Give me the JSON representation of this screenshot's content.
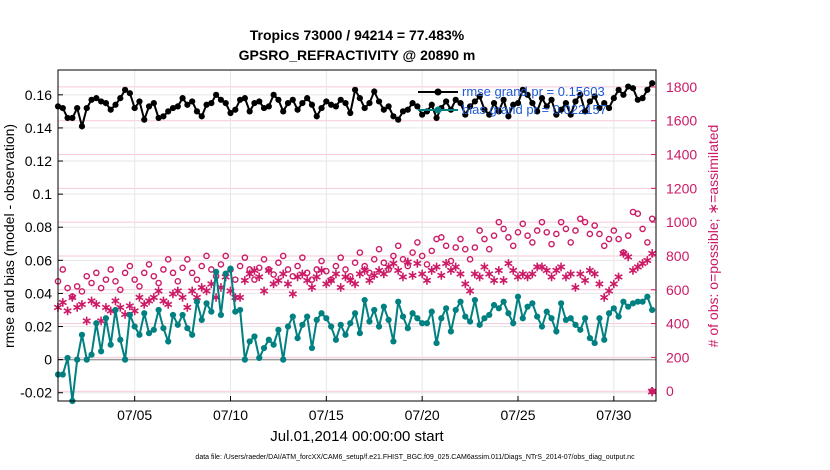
{
  "chart_data": {
    "type": "line",
    "title": "Tropics 73000 / 94214 = 77.483%",
    "subtitle": "GPSRO_REFRACTIVITY @ 20890 m",
    "xlabel": "Jul.01,2014 00:00:00 start",
    "ylabel_left": "rmse and bias (model - observation)",
    "ylabel_right": "# of obs: o=possible; ∗=assimilated",
    "footer": "data file: /Users/raeder/DAI/ATM_forcXX/CAM6_setup/f.e21.FHIST_BGC.f09_025.CAM6assim.011/Diags_NTrS_2014-07/obs_diag_output.nc",
    "xlim": [
      1.0,
      32.2
    ],
    "ylim_left": [
      -0.025,
      0.175
    ],
    "ylim_right": [
      -58,
      1900
    ],
    "x_tick_values": [
      5,
      10,
      15,
      20,
      25,
      30
    ],
    "x_tick_labels": [
      "07/05",
      "07/10",
      "07/15",
      "07/20",
      "07/25",
      "07/30"
    ],
    "y_left_ticks": [
      -0.02,
      0,
      0.02,
      0.04,
      0.06,
      0.08,
      0.1,
      0.12,
      0.14,
      0.16
    ],
    "y_left_tick_labels": [
      "-0.02",
      "0",
      "0.02",
      "0.04",
      "0.06",
      "0.08",
      "0.1",
      "0.12",
      "0.14",
      "0.16"
    ],
    "y_right_ticks": [
      0,
      200,
      400,
      600,
      800,
      1000,
      1200,
      1400,
      1600,
      1800
    ],
    "y_right_tick_labels": [
      "0",
      "200",
      "400",
      "600",
      "800",
      "1000",
      "1200",
      "1400",
      "1600",
      "1800"
    ],
    "x_start": 1.0,
    "x_step": 0.25,
    "legend": [
      {
        "label": "rmse grand pr = 0.15603",
        "color": "#000000"
      },
      {
        "label": "bias grand pr = 0.022157",
        "color": "#008080"
      }
    ],
    "series": [
      {
        "name": "rmse",
        "axis": "left",
        "color": "#000000",
        "values": [
          0.153,
          0.152,
          0.146,
          0.146,
          0.152,
          0.141,
          0.152,
          0.157,
          0.158,
          0.156,
          0.155,
          0.151,
          0.154,
          0.158,
          0.163,
          0.161,
          0.152,
          0.156,
          0.145,
          0.153,
          0.155,
          0.146,
          0.147,
          0.15,
          0.152,
          0.153,
          0.158,
          0.154,
          0.156,
          0.15,
          0.147,
          0.154,
          0.155,
          0.16,
          0.157,
          0.155,
          0.149,
          0.151,
          0.157,
          0.158,
          0.15,
          0.155,
          0.156,
          0.152,
          0.153,
          0.16,
          0.157,
          0.15,
          0.155,
          0.157,
          0.151,
          0.155,
          0.158,
          0.154,
          0.147,
          0.152,
          0.156,
          0.154,
          0.153,
          0.157,
          0.155,
          0.149,
          0.163,
          0.158,
          0.152,
          0.155,
          0.162,
          0.156,
          0.151,
          0.153,
          0.147,
          0.145,
          0.15,
          0.151,
          0.155,
          0.153,
          0.148,
          0.15,
          0.154,
          0.146,
          0.152,
          0.156,
          0.151,
          0.157,
          0.155,
          0.148,
          0.153,
          0.156,
          0.159,
          0.151,
          0.148,
          0.155,
          0.15,
          0.157,
          0.147,
          0.154,
          0.155,
          0.163,
          0.16,
          0.155,
          0.15,
          0.158,
          0.153,
          0.157,
          0.148,
          0.151,
          0.155,
          0.148,
          0.156,
          0.16,
          0.15,
          0.156,
          0.159,
          0.152,
          0.155,
          0.152,
          0.158,
          0.163,
          0.16,
          0.165,
          0.164,
          0.157,
          0.158,
          0.163,
          0.167,
          0.158
        ]
      },
      {
        "name": "bias",
        "axis": "left",
        "color": "#008080",
        "values": [
          -0.009,
          -0.009,
          0.001,
          -0.025,
          0.0,
          0.015,
          0.0,
          0.003,
          0.022,
          0.005,
          0.025,
          0.009,
          0.03,
          0.012,
          0.0,
          0.027,
          0.02,
          0.015,
          0.028,
          0.016,
          0.018,
          0.03,
          0.019,
          0.011,
          0.027,
          0.021,
          0.027,
          0.019,
          0.015,
          0.035,
          0.024,
          0.034,
          0.029,
          0.053,
          0.027,
          0.052,
          0.055,
          0.029,
          0.03,
          0.0,
          0.011,
          0.014,
          0.001,
          0.007,
          0.012,
          0.009,
          0.018,
          0.0,
          0.02,
          0.026,
          0.013,
          0.021,
          0.026,
          0.007,
          0.024,
          0.028,
          0.025,
          0.02,
          0.012,
          0.021,
          0.015,
          0.022,
          0.028,
          0.016,
          0.036,
          0.023,
          0.03,
          0.02,
          0.032,
          0.024,
          0.011,
          0.035,
          0.026,
          0.019,
          0.028,
          0.025,
          0.022,
          0.022,
          0.029,
          0.01,
          0.025,
          0.031,
          0.017,
          0.03,
          0.035,
          0.026,
          0.023,
          0.036,
          0.021,
          0.025,
          0.027,
          0.033,
          0.031,
          0.035,
          0.028,
          0.022,
          0.038,
          0.025,
          0.032,
          0.034,
          0.026,
          0.02,
          0.029,
          0.025,
          0.017,
          0.034,
          0.024,
          0.025,
          0.021,
          0.018,
          0.025,
          0.013,
          0.01,
          0.025,
          0.012,
          0.028,
          0.031,
          0.026,
          0.035,
          0.032,
          0.034,
          0.035,
          0.035,
          0.038,
          0.03,
          0.023
        ]
      },
      {
        "name": "possible",
        "axis": "right",
        "color": "#cc1a66",
        "marker": "circle",
        "values": [
          650,
          720,
          610,
          560,
          620,
          590,
          680,
          640,
          700,
          610,
          660,
          720,
          650,
          600,
          700,
          740,
          660,
          620,
          700,
          750,
          680,
          640,
          720,
          780,
          700,
          650,
          730,
          780,
          700,
          660,
          740,
          800,
          720,
          680,
          750,
          800,
          720,
          660,
          740,
          790,
          720,
          660,
          730,
          780,
          720,
          690,
          760,
          800,
          720,
          680,
          740,
          790,
          700,
          660,
          720,
          770,
          710,
          660,
          740,
          790,
          720,
          680,
          760,
          820,
          740,
          700,
          780,
          840,
          760,
          720,
          800,
          860,
          780,
          740,
          820,
          880,
          800,
          750,
          830,
          900,
          910,
          860,
          770,
          850,
          900,
          840,
          780,
          850,
          950,
          900,
          840,
          920,
          1000,
          960,
          910,
          860,
          940,
          990,
          920,
          880,
          950,
          1000,
          940,
          870,
          930,
          1000,
          960,
          880,
          950,
          1020,
          1000,
          930,
          980,
          930,
          860,
          900,
          950,
          900,
          820,
          920,
          1060,
          1050,
          960,
          880,
          1020,
          960
        ]
      },
      {
        "name": "assimilated",
        "axis": "right",
        "color": "#cc1a66",
        "marker": "star",
        "values": [
          500,
          530,
          480,
          560,
          500,
          520,
          420,
          540,
          520,
          420,
          500,
          480,
          540,
          500,
          460,
          510,
          480,
          560,
          520,
          540,
          560,
          600,
          540,
          520,
          580,
          600,
          560,
          500,
          600,
          560,
          620,
          600,
          640,
          560,
          620,
          680,
          600,
          560,
          560,
          660,
          700,
          720,
          680,
          600,
          720,
          640,
          660,
          700,
          640,
          580,
          680,
          700,
          660,
          620,
          680,
          720,
          640,
          660,
          700,
          620,
          680,
          660,
          640,
          700,
          720,
          660,
          690,
          720,
          700,
          740,
          760,
          720,
          680,
          770,
          690,
          760,
          700,
          660,
          720,
          740,
          690,
          760,
          720,
          740,
          700,
          640,
          600,
          700,
          680,
          740,
          700,
          660,
          720,
          660,
          760,
          720,
          680,
          700,
          680,
          700,
          740,
          740,
          720,
          680,
          720,
          740,
          680,
          700,
          620,
          700,
          660,
          720,
          700,
          640,
          560,
          600,
          640,
          680,
          820,
          800,
          720,
          740,
          760,
          780,
          820,
          800
        ]
      }
    ],
    "assimilated_zero_point": {
      "x": 32.0,
      "value": 0
    }
  }
}
